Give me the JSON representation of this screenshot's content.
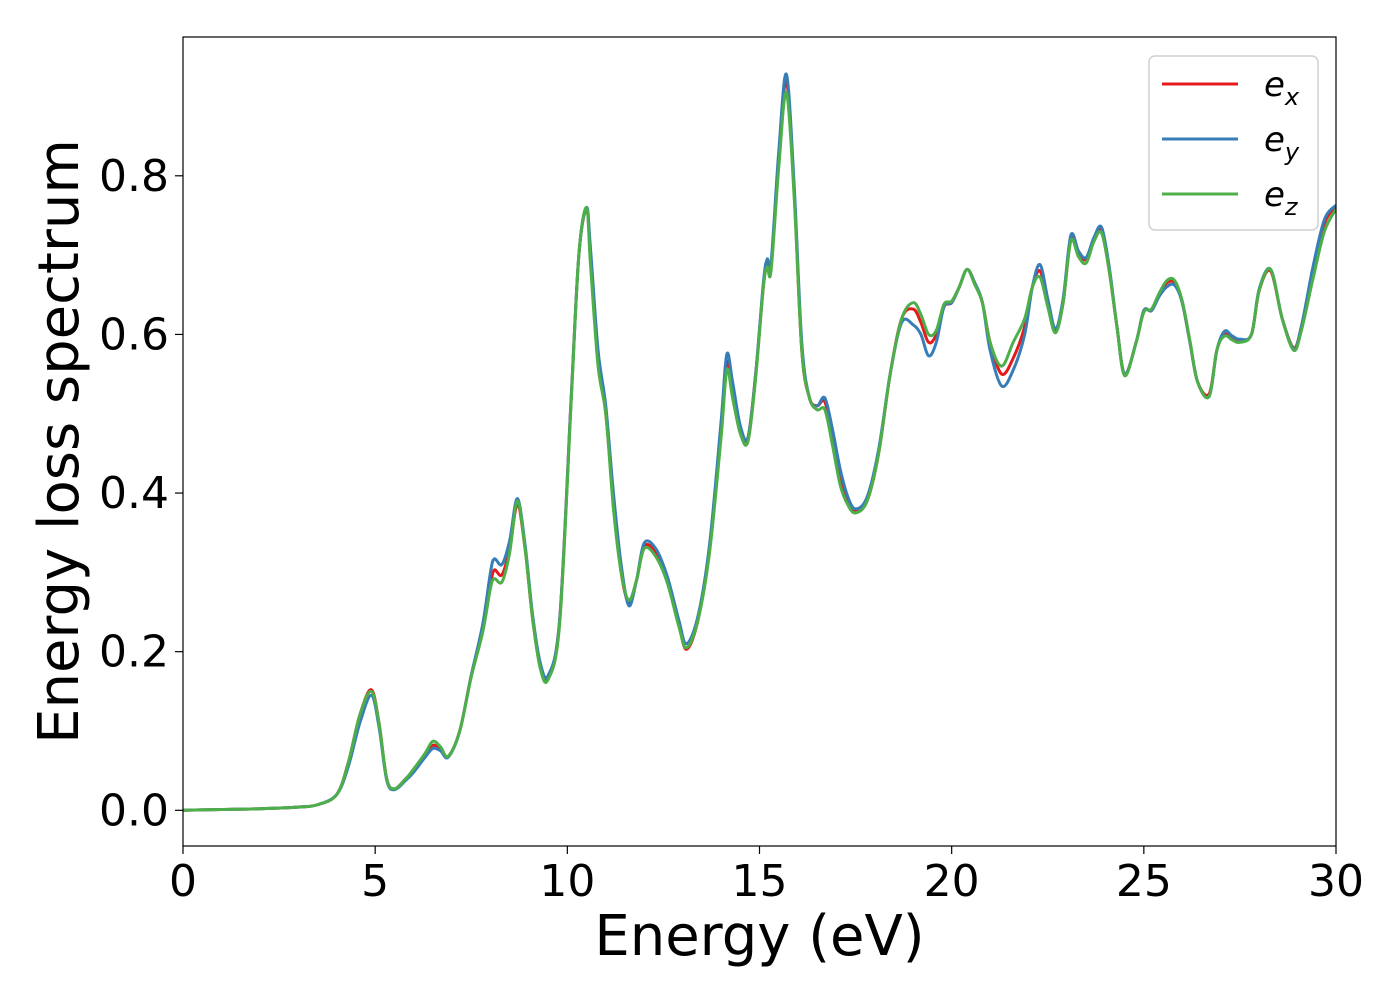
{
  "chart_data": {
    "type": "line",
    "title": "",
    "xlabel": "Energy (eV)",
    "ylabel": "Energy loss spectrum",
    "xlim": [
      0,
      30
    ],
    "ylim": [
      -0.045,
      0.975
    ],
    "xticks": [
      0,
      5,
      10,
      15,
      20,
      25,
      30
    ],
    "xtick_labels": [
      "0",
      "5",
      "10",
      "15",
      "20",
      "25",
      "30"
    ],
    "yticks": [
      0.0,
      0.2,
      0.4,
      0.6,
      0.8
    ],
    "ytick_labels": [
      "0.0",
      "0.2",
      "0.4",
      "0.6",
      "0.8"
    ],
    "grid": false,
    "legend_position": "top-right",
    "x": [
      0,
      1,
      2,
      3,
      3.5,
      4.0,
      4.3,
      4.6,
      4.9,
      5.1,
      5.3,
      5.5,
      5.8,
      6.0,
      6.3,
      6.5,
      6.7,
      6.9,
      7.2,
      7.5,
      7.8,
      8.0,
      8.1,
      8.3,
      8.5,
      8.7,
      8.9,
      9.1,
      9.3,
      9.5,
      9.8,
      10.1,
      10.3,
      10.5,
      10.6,
      10.8,
      11.0,
      11.2,
      11.4,
      11.6,
      11.8,
      12.0,
      12.3,
      12.6,
      12.9,
      13.1,
      13.4,
      13.7,
      14.0,
      14.15,
      14.3,
      14.5,
      14.7,
      14.9,
      15.1,
      15.2,
      15.3,
      15.5,
      15.7,
      15.9,
      16.1,
      16.3,
      16.5,
      16.7,
      16.9,
      17.1,
      17.3,
      17.5,
      17.8,
      18.1,
      18.4,
      18.7,
      19.0,
      19.2,
      19.4,
      19.6,
      19.8,
      20.0,
      20.2,
      20.4,
      20.6,
      20.8,
      21.0,
      21.3,
      21.6,
      21.9,
      22.1,
      22.3,
      22.5,
      22.7,
      22.9,
      23.1,
      23.3,
      23.5,
      23.7,
      23.9,
      24.1,
      24.3,
      24.5,
      24.8,
      25.0,
      25.2,
      25.4,
      25.6,
      25.8,
      26.0,
      26.2,
      26.4,
      26.7,
      26.9,
      27.1,
      27.3,
      27.5,
      27.8,
      28.0,
      28.3,
      28.6,
      28.9,
      29.1,
      29.4,
      29.7,
      30.0
    ],
    "series": [
      {
        "name": "e_x",
        "label_base": "e",
        "label_sub": "x",
        "color": "#e41a1c",
        "values": [
          0.0,
          0.001,
          0.002,
          0.004,
          0.007,
          0.02,
          0.06,
          0.12,
          0.152,
          0.11,
          0.04,
          0.027,
          0.04,
          0.05,
          0.07,
          0.082,
          0.077,
          0.068,
          0.1,
          0.17,
          0.23,
          0.285,
          0.303,
          0.297,
          0.33,
          0.385,
          0.33,
          0.24,
          0.18,
          0.168,
          0.24,
          0.52,
          0.7,
          0.758,
          0.7,
          0.57,
          0.5,
          0.39,
          0.3,
          0.262,
          0.29,
          0.333,
          0.325,
          0.29,
          0.235,
          0.203,
          0.24,
          0.33,
          0.48,
          0.565,
          0.53,
          0.48,
          0.47,
          0.55,
          0.66,
          0.69,
          0.685,
          0.82,
          0.92,
          0.78,
          0.58,
          0.52,
          0.51,
          0.515,
          0.47,
          0.42,
          0.39,
          0.377,
          0.39,
          0.45,
          0.55,
          0.62,
          0.632,
          0.615,
          0.59,
          0.6,
          0.635,
          0.64,
          0.66,
          0.682,
          0.665,
          0.64,
          0.59,
          0.55,
          0.57,
          0.61,
          0.66,
          0.68,
          0.64,
          0.605,
          0.64,
          0.72,
          0.7,
          0.695,
          0.72,
          0.73,
          0.68,
          0.61,
          0.55,
          0.59,
          0.63,
          0.63,
          0.65,
          0.665,
          0.665,
          0.64,
          0.59,
          0.54,
          0.525,
          0.58,
          0.6,
          0.595,
          0.592,
          0.6,
          0.655,
          0.68,
          0.62,
          0.583,
          0.61,
          0.68,
          0.74,
          0.762
        ]
      },
      {
        "name": "e_y",
        "label_base": "e",
        "label_sub": "y",
        "color": "#377eb8",
        "values": [
          0.0,
          0.001,
          0.002,
          0.004,
          0.007,
          0.02,
          0.055,
          0.11,
          0.145,
          0.105,
          0.038,
          0.026,
          0.038,
          0.048,
          0.067,
          0.078,
          0.075,
          0.067,
          0.1,
          0.17,
          0.235,
          0.3,
          0.317,
          0.31,
          0.34,
          0.393,
          0.335,
          0.245,
          0.185,
          0.17,
          0.24,
          0.52,
          0.7,
          0.76,
          0.71,
          0.58,
          0.51,
          0.4,
          0.31,
          0.258,
          0.29,
          0.337,
          0.33,
          0.295,
          0.24,
          0.21,
          0.245,
          0.335,
          0.49,
          0.575,
          0.54,
          0.485,
          0.47,
          0.55,
          0.665,
          0.695,
          0.69,
          0.83,
          0.928,
          0.79,
          0.59,
          0.52,
          0.51,
          0.52,
          0.48,
          0.43,
          0.395,
          0.38,
          0.395,
          0.455,
          0.55,
          0.615,
          0.612,
          0.6,
          0.573,
          0.59,
          0.635,
          0.64,
          0.66,
          0.682,
          0.665,
          0.64,
          0.58,
          0.535,
          0.555,
          0.6,
          0.66,
          0.688,
          0.645,
          0.608,
          0.645,
          0.725,
          0.705,
          0.697,
          0.722,
          0.735,
          0.685,
          0.61,
          0.55,
          0.59,
          0.63,
          0.63,
          0.648,
          0.66,
          0.662,
          0.64,
          0.59,
          0.54,
          0.522,
          0.58,
          0.604,
          0.598,
          0.594,
          0.6,
          0.657,
          0.682,
          0.62,
          0.582,
          0.61,
          0.685,
          0.745,
          0.763
        ]
      },
      {
        "name": "e_z",
        "label_base": "e",
        "label_sub": "z",
        "color": "#4daf4a",
        "values": [
          0.0,
          0.001,
          0.002,
          0.004,
          0.007,
          0.02,
          0.06,
          0.12,
          0.15,
          0.11,
          0.04,
          0.027,
          0.04,
          0.052,
          0.072,
          0.087,
          0.08,
          0.068,
          0.1,
          0.168,
          0.225,
          0.28,
          0.292,
          0.288,
          0.325,
          0.39,
          0.33,
          0.24,
          0.178,
          0.165,
          0.235,
          0.515,
          0.7,
          0.76,
          0.69,
          0.56,
          0.5,
          0.38,
          0.3,
          0.265,
          0.29,
          0.33,
          0.32,
          0.287,
          0.232,
          0.205,
          0.24,
          0.325,
          0.47,
          0.555,
          0.52,
          0.475,
          0.465,
          0.545,
          0.66,
          0.685,
          0.68,
          0.81,
          0.905,
          0.775,
          0.58,
          0.52,
          0.505,
          0.505,
          0.46,
          0.41,
          0.385,
          0.375,
          0.39,
          0.45,
          0.55,
          0.62,
          0.64,
          0.625,
          0.6,
          0.605,
          0.638,
          0.642,
          0.66,
          0.682,
          0.663,
          0.64,
          0.59,
          0.56,
          0.59,
          0.62,
          0.66,
          0.672,
          0.635,
          0.602,
          0.64,
          0.718,
          0.698,
          0.69,
          0.717,
          0.728,
          0.68,
          0.61,
          0.548,
          0.59,
          0.628,
          0.632,
          0.652,
          0.668,
          0.668,
          0.642,
          0.592,
          0.54,
          0.522,
          0.58,
          0.598,
          0.593,
          0.59,
          0.6,
          0.655,
          0.682,
          0.62,
          0.58,
          0.605,
          0.67,
          0.73,
          0.758
        ]
      }
    ]
  }
}
